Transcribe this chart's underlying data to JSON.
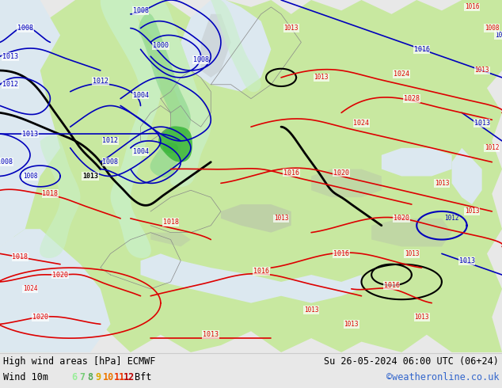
{
  "title_left": "High wind areas [hPa] ECMWF",
  "title_right": "Su 26-05-2024 06:00 UTC (06+24)",
  "subtitle_left": "Wind 10m",
  "watermark": "©weatheronline.co.uk",
  "legend_values": [
    "6",
    "7",
    "8",
    "9",
    "10",
    "11",
    "12"
  ],
  "legend_colors": [
    "#99ee99",
    "#77cc77",
    "#55aa55",
    "#ddaa00",
    "#ee7700",
    "#ee3300",
    "#bb0000"
  ],
  "legend_suffix": "Bft",
  "ocean_color": "#dce8f0",
  "land_color": "#c8e8a0",
  "mountain_color": "#b0b0b0",
  "bottom_bar_color": "#e8e8e8",
  "isobar_red": "#dd0000",
  "isobar_blue": "#0000bb",
  "isobar_black": "#000000",
  "wind_green1": "#c8f0c8",
  "wind_green2": "#90d890",
  "wind_green3": "#40b840",
  "font_size_bottom": 9,
  "font_size_label": 6,
  "figsize": [
    6.34,
    4.9
  ],
  "dpi": 100
}
